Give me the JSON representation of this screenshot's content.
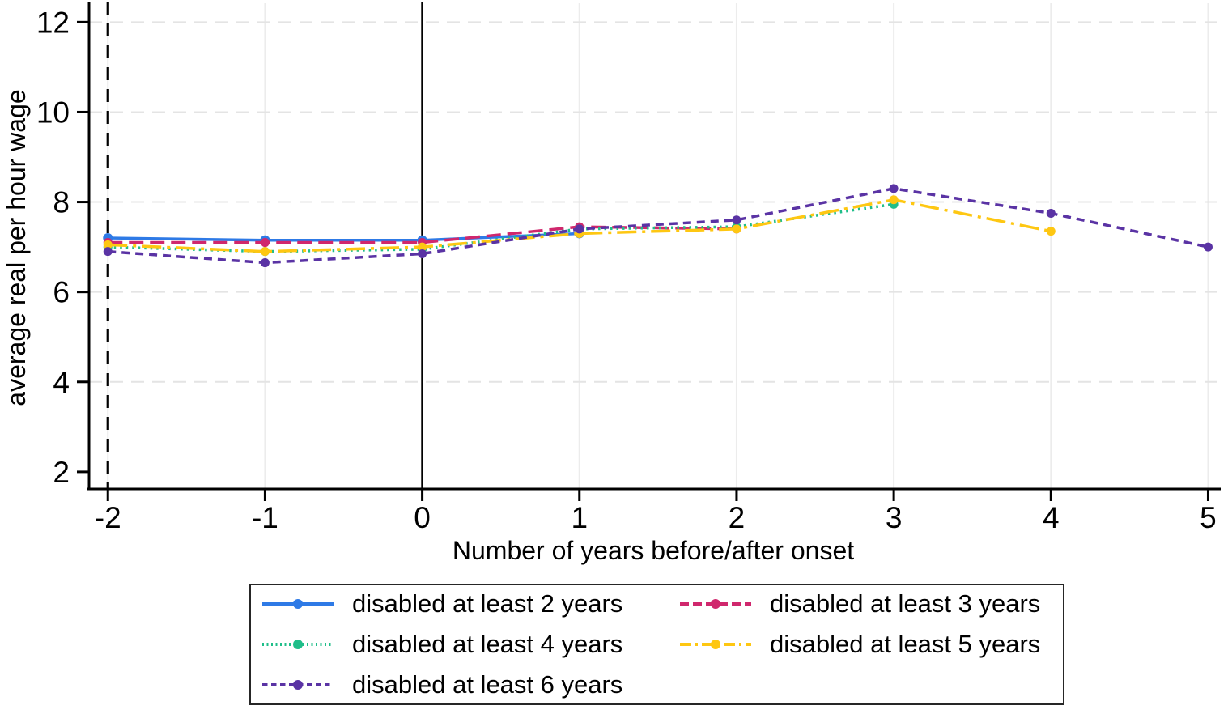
{
  "chart_data": {
    "type": "line",
    "title": "",
    "xlabel": "Number of years before/after onset",
    "ylabel": "average real per hour wage",
    "xlim": [
      -2.13,
      5.08
    ],
    "ylim": [
      1.62,
      12.42
    ],
    "x_ticks": [
      -2,
      -1,
      0,
      1,
      2,
      3,
      4,
      5
    ],
    "y_ticks": [
      2,
      4,
      6,
      8,
      10,
      12
    ],
    "y_gridlines": [
      4,
      6,
      8,
      10,
      12
    ],
    "grid": "horizontal dashed light-gray, vertical solid light-gray",
    "legend_position": "below-bottom-center",
    "reference_lines": [
      {
        "x": -2,
        "style": "dashed",
        "color": "#000000"
      },
      {
        "x": 0,
        "style": "solid",
        "color": "#000000"
      }
    ],
    "series": [
      {
        "name": "disabled at least 2 years",
        "color": "#2e7ae6",
        "dash": "solid",
        "x": [
          -2,
          -1,
          0,
          1
        ],
        "values": [
          7.2,
          7.15,
          7.15,
          7.3
        ]
      },
      {
        "name": "disabled at least 3 years",
        "color": "#d0276d",
        "dash": "long-dash",
        "x": [
          -2,
          -1,
          0,
          1,
          2
        ],
        "values": [
          7.1,
          7.1,
          7.1,
          7.45,
          7.4
        ]
      },
      {
        "name": "disabled at least 4 years",
        "color": "#1fbe89",
        "dash": "dot",
        "x": [
          -2,
          -1,
          0,
          1,
          2,
          3
        ],
        "values": [
          7.0,
          6.9,
          6.95,
          7.4,
          7.45,
          7.95
        ]
      },
      {
        "name": "disabled at least 5 years",
        "color": "#fec712",
        "dash": "dash-dot",
        "x": [
          -2,
          -1,
          0,
          1,
          2,
          3,
          4
        ],
        "values": [
          7.05,
          6.9,
          7.0,
          7.3,
          7.4,
          8.05,
          7.35
        ]
      },
      {
        "name": "disabled at least 6 years",
        "color": "#5a33a4",
        "dash": "short-dash",
        "x": [
          -2,
          -1,
          0,
          1,
          2,
          3,
          4,
          5
        ],
        "values": [
          6.9,
          6.65,
          6.85,
          7.4,
          7.6,
          8.3,
          7.75,
          7.0
        ]
      }
    ]
  }
}
